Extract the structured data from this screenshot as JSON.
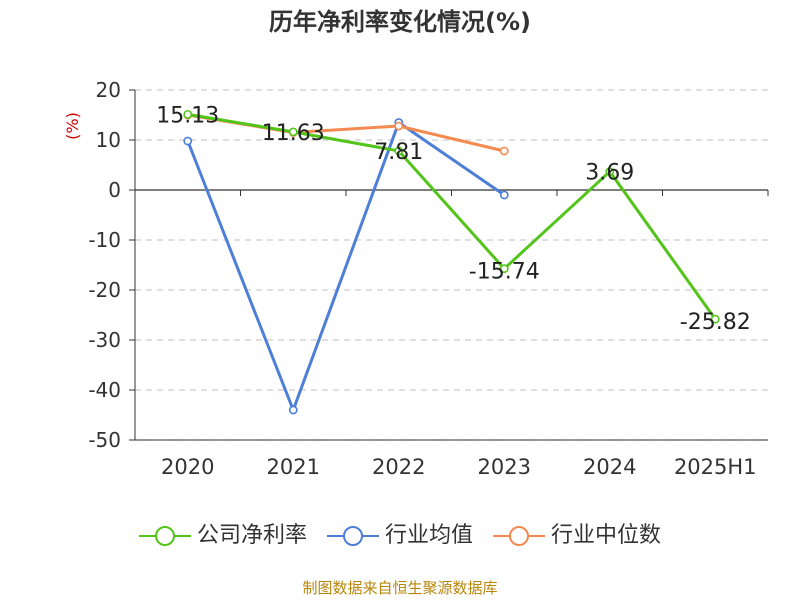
{
  "chart_data": {
    "type": "line",
    "title": "历年净利率变化情况(%)",
    "ylabel": "(%)",
    "xlabel": "",
    "categories": [
      "2020",
      "2021",
      "2022",
      "2023",
      "2024",
      "2025H1"
    ],
    "ylim": [
      -50,
      20
    ],
    "yticks": [
      20,
      10,
      0,
      -10,
      -20,
      -30,
      -40,
      -50
    ],
    "grid": true,
    "legend_position": "bottom",
    "series": [
      {
        "name": "公司净利率",
        "color": "#52c41a",
        "values": [
          15.13,
          11.63,
          7.81,
          -15.74,
          3.69,
          -25.82
        ],
        "labels": [
          "15.13",
          "11.63",
          "7.81",
          "-15.74",
          "3.69",
          "-25.82"
        ]
      },
      {
        "name": "行业均值",
        "color": "#4e7fd8",
        "values": [
          9.8,
          -44.0,
          13.5,
          -1.0,
          null,
          null
        ]
      },
      {
        "name": "行业中位数",
        "color": "#f58a50",
        "values": [
          15.0,
          11.5,
          12.8,
          7.8,
          null,
          null
        ]
      }
    ]
  },
  "source": "制图数据来自恒生聚源数据库",
  "colors": {
    "ylabel": "#cc0000",
    "axis": "#333333",
    "grid": "#cccccc",
    "source": "#b8860b"
  }
}
